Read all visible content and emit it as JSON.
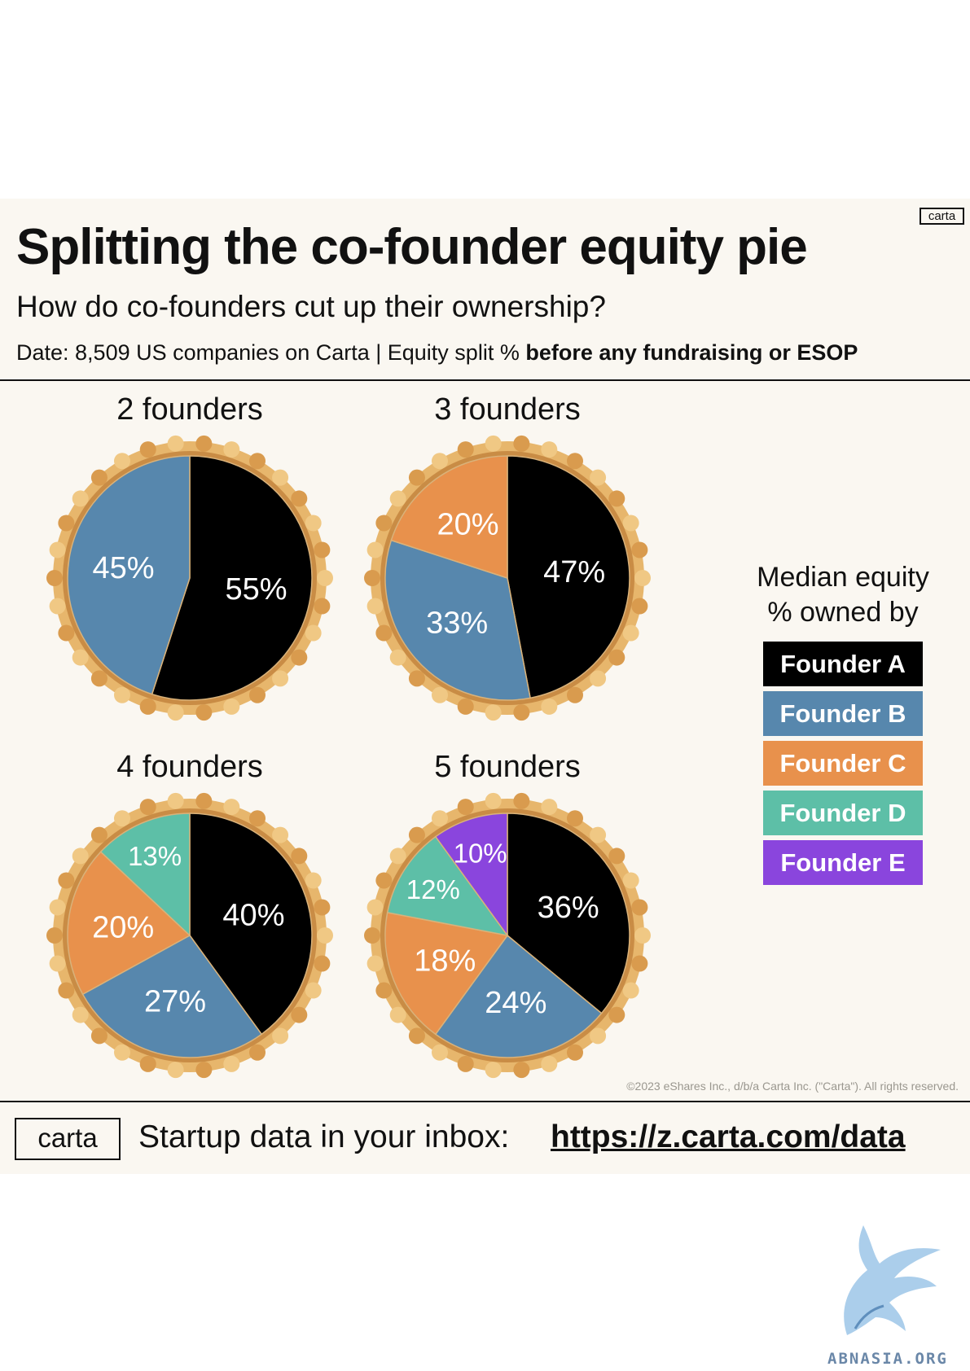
{
  "header": {
    "badge": "carta",
    "title": "Splitting the co-founder equity pie",
    "subtitle": "How do co-founders cut up their ownership?",
    "source_prefix": "Date: 8,509 US companies on Carta | Equity split %",
    "source_bold": "before any fundraising or ESOP"
  },
  "legend": {
    "heading_line1": "Median equity",
    "heading_line2": "% owned by"
  },
  "footer": {
    "logo": "carta",
    "text": "Startup data in your inbox:",
    "link": "https://z.carta.com/data",
    "copyright": "©2023 eShares Inc., d/b/a Carta Inc. (\"Carta\"). All rights reserved."
  },
  "watermark": {
    "text": "ABNASIA.ORG"
  },
  "chart_data": {
    "type": "pie",
    "series_legend": [
      {
        "name": "Founder A",
        "color": "#000000"
      },
      {
        "name": "Founder B",
        "color": "#5787ad"
      },
      {
        "name": "Founder C",
        "color": "#e8914c"
      },
      {
        "name": "Founder D",
        "color": "#5dbfa7"
      },
      {
        "name": "Founder E",
        "color": "#8a45dd"
      }
    ],
    "charts": [
      {
        "title": "2 founders",
        "labels": [
          "Founder A",
          "Founder B"
        ],
        "values": [
          55,
          45
        ]
      },
      {
        "title": "3 founders",
        "labels": [
          "Founder A",
          "Founder B",
          "Founder C"
        ],
        "values": [
          47,
          33,
          20
        ]
      },
      {
        "title": "4 founders",
        "labels": [
          "Founder A",
          "Founder B",
          "Founder C",
          "Founder D"
        ],
        "values": [
          40,
          27,
          20,
          13
        ]
      },
      {
        "title": "5 founders",
        "labels": [
          "Founder A",
          "Founder B",
          "Founder C",
          "Founder D",
          "Founder E"
        ],
        "values": [
          36,
          24,
          18,
          12,
          10
        ]
      }
    ]
  }
}
